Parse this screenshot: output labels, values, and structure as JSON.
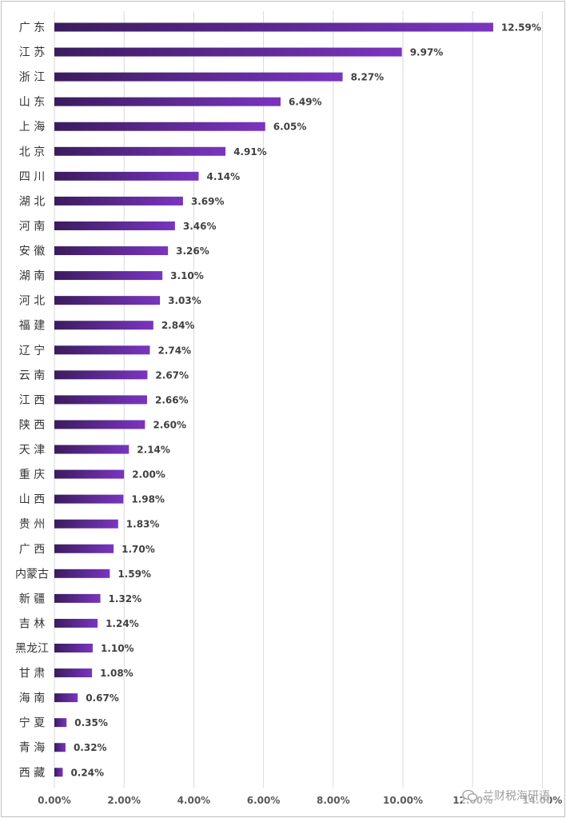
{
  "chart_data": {
    "type": "bar",
    "orientation": "horizontal",
    "categories": [
      "广 东",
      "江 苏",
      "浙 江",
      "山 东",
      "上 海",
      "北 京",
      "四 川",
      "湖 北",
      "河 南",
      "安 徽",
      "湖 南",
      "河 北",
      "福 建",
      "辽 宁",
      "云 南",
      "江 西",
      "陕 西",
      "天 津",
      "重 庆",
      "山 西",
      "贵 州",
      "广 西",
      "内蒙古",
      "新 疆",
      "吉 林",
      "黑龙江",
      "甘 肃",
      "海 南",
      "宁 夏",
      "青 海",
      "西 藏"
    ],
    "values": [
      12.59,
      9.97,
      8.27,
      6.49,
      6.05,
      4.91,
      4.14,
      3.69,
      3.46,
      3.26,
      3.1,
      3.03,
      2.84,
      2.74,
      2.67,
      2.66,
      2.6,
      2.14,
      2.0,
      1.98,
      1.83,
      1.7,
      1.59,
      1.32,
      1.24,
      1.1,
      1.08,
      0.67,
      0.35,
      0.32,
      0.24
    ],
    "value_labels": [
      "12.59%",
      "9.97%",
      "8.27%",
      "6.49%",
      "6.05%",
      "4.91%",
      "4.14%",
      "3.69%",
      "3.46%",
      "3.26%",
      "3.10%",
      "3.03%",
      "2.84%",
      "2.74%",
      "2.67%",
      "2.66%",
      "2.60%",
      "2.14%",
      "2.00%",
      "1.98%",
      "1.83%",
      "1.70%",
      "1.59%",
      "1.32%",
      "1.24%",
      "1.10%",
      "1.08%",
      "0.67%",
      "0.35%",
      "0.32%",
      "0.24%"
    ],
    "xlim": [
      0,
      14
    ],
    "x_ticks": [
      0,
      2,
      4,
      6,
      8,
      10,
      12,
      14
    ],
    "x_tick_labels": [
      "0.00%",
      "2.00%",
      "4.00%",
      "6.00%",
      "8.00%",
      "10.00%",
      "12.00%",
      "14.00%"
    ],
    "grid": "vertical",
    "legend": "none",
    "bar_gradient": [
      "#3b1c5e",
      "#7a35c0"
    ]
  },
  "watermark": {
    "text": "兰财税海研语"
  }
}
